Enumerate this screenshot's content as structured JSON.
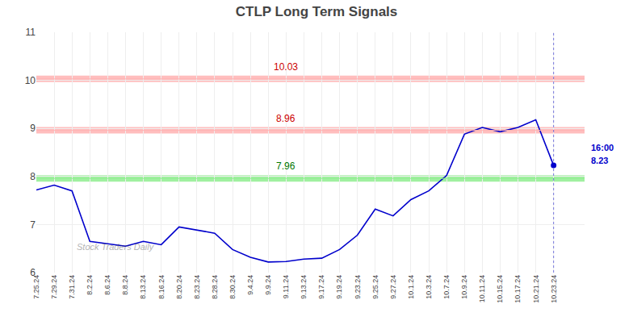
{
  "chart_data": {
    "type": "line",
    "title": "CTLP Long Term Signals",
    "categories": [
      "7.25.24",
      "7.29.24",
      "7.31.24",
      "8.2.24",
      "8.6.24",
      "8.8.24",
      "8.13.24",
      "8.16.24",
      "8.20.24",
      "8.23.24",
      "8.28.24",
      "8.30.24",
      "9.4.24",
      "9.9.24",
      "9.11.24",
      "9.13.24",
      "9.17.24",
      "9.19.24",
      "9.23.24",
      "9.25.24",
      "9.27.24",
      "10.1.24",
      "10.3.24",
      "10.7.24",
      "10.9.24",
      "10.11.24",
      "10.15.24",
      "10.17.24",
      "10.21.24",
      "10.23.24"
    ],
    "values": [
      7.72,
      7.82,
      7.7,
      6.65,
      6.6,
      6.55,
      6.65,
      6.58,
      6.95,
      6.88,
      6.82,
      6.48,
      6.32,
      6.22,
      6.23,
      6.28,
      6.3,
      6.48,
      6.78,
      7.32,
      7.18,
      7.52,
      7.7,
      8.02,
      8.88,
      9.02,
      8.93,
      9.02,
      9.18,
      8.23
    ],
    "color": "#0000cc",
    "ylim": [
      6,
      11
    ],
    "yticks": [
      6,
      7,
      8,
      9,
      10,
      11
    ],
    "grid": true,
    "hlines": [
      {
        "value": 10.03,
        "label": "10.03",
        "color": "#ffb3b3",
        "label_color": "#cc0000"
      },
      {
        "value": 8.96,
        "label": "8.96",
        "color": "#ffb3b3",
        "label_color": "#cc0000"
      },
      {
        "value": 7.96,
        "label": "7.96",
        "color": "#90ee90",
        "label_color": "#007700"
      }
    ],
    "annotations": [
      "16:00",
      "8.23"
    ],
    "watermark": "Stock Traders Daily"
  }
}
